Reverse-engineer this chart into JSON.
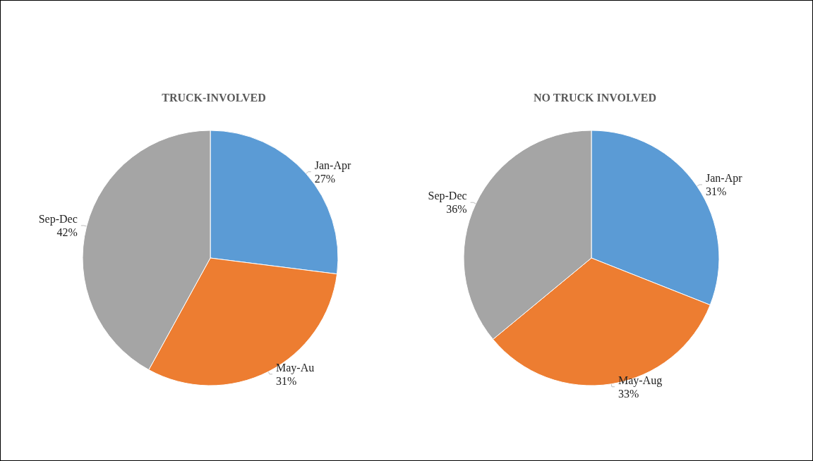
{
  "chart_data": [
    {
      "type": "pie",
      "title": "TRUCK-INVOLVED",
      "categories": [
        "Jan-Apr",
        "May-Au",
        "Sep-Dec"
      ],
      "values": [
        27,
        31,
        42
      ],
      "value_labels": [
        "27%",
        "31%",
        "42%"
      ],
      "colors": [
        "#5b9bd5",
        "#ed7d31",
        "#a5a5a5"
      ]
    },
    {
      "type": "pie",
      "title": "NO TRUCK INVOLVED",
      "categories": [
        "Jan-Apr",
        "May-Aug",
        "Sep-Dec"
      ],
      "values": [
        31,
        33,
        36
      ],
      "value_labels": [
        "31%",
        "33%",
        "36%"
      ],
      "colors": [
        "#5b9bd5",
        "#ed7d31",
        "#a5a5a5"
      ]
    }
  ]
}
